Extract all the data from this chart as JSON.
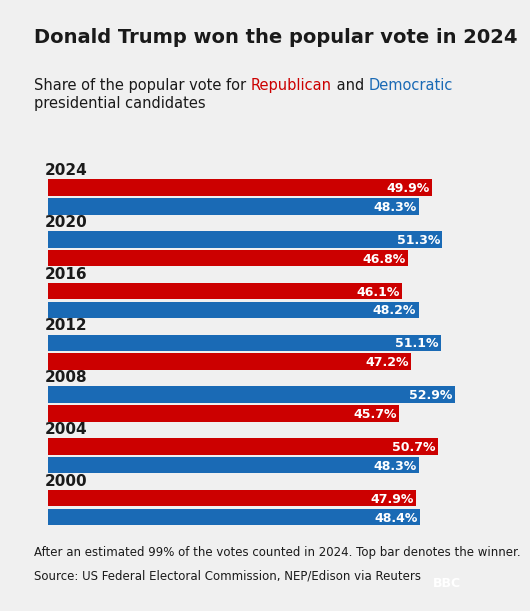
{
  "title": "Donald Trump won the popular vote in 2024",
  "subtitle_plain": "Share of the popular vote for ",
  "subtitle_parts": [
    {
      "text": "Share of the popular vote for ",
      "color": "#1a1a1a"
    },
    {
      "text": "Republican",
      "color": "#cc0000"
    },
    {
      "text": " and ",
      "color": "#1a1a1a"
    },
    {
      "text": "Democratic",
      "color": "#1a6ab5"
    },
    {
      "text": "\npresidential candidates",
      "color": "#1a1a1a"
    }
  ],
  "footnote": "After an estimated 99% of the votes counted in 2024. Top bar denotes the winner.",
  "source": "Source: US Federal Electoral Commission, NEP/Edison via Reuters",
  "background_color": "#f0f0f0",
  "republican_color": "#cc0000",
  "democratic_color": "#1a6ab5",
  "years": [
    "2024",
    "2020",
    "2016",
    "2012",
    "2008",
    "2004",
    "2000"
  ],
  "data": {
    "2024": {
      "winner": "R",
      "R": 49.9,
      "D": 48.3
    },
    "2020": {
      "winner": "D",
      "R": 46.8,
      "D": 51.3
    },
    "2016": {
      "winner": "R",
      "R": 46.1,
      "D": 48.2
    },
    "2012": {
      "winner": "D",
      "R": 47.2,
      "D": 51.1
    },
    "2008": {
      "winner": "D",
      "R": 45.7,
      "D": 52.9
    },
    "2004": {
      "winner": "R",
      "R": 50.7,
      "D": 48.3
    },
    "2000": {
      "winner": "R",
      "R": 47.9,
      "D": 48.4
    }
  },
  "xlim": [
    0,
    55
  ],
  "bar_height": 0.35,
  "bar_gap": 0.05,
  "label_fontsize": 9,
  "year_fontsize": 11,
  "title_fontsize": 14,
  "subtitle_fontsize": 10.5,
  "footnote_fontsize": 8.5,
  "source_fontsize": 8.5
}
